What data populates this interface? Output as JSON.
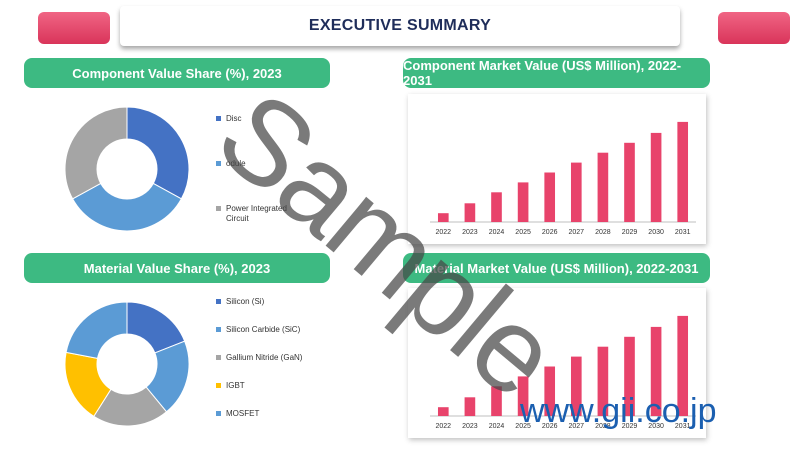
{
  "header": {
    "title": "EXECUTIVE SUMMARY"
  },
  "colors": {
    "accent_pink": "#e8436b",
    "panel_green": "#3dba82",
    "title_navy": "#1f2d5a"
  },
  "panels": {
    "component_share_title": "Component Value Share (%), 2023",
    "component_value_title": "Component Market Value (US$ Million), 2022-2031",
    "material_share_title": "Material Value Share (%), 2023",
    "material_value_title": "Material Market Value (US$ Million), 2022-2031"
  },
  "watermark": {
    "text": "Sample",
    "url": "www.gii.co.jp"
  },
  "chart_data": [
    {
      "type": "pie",
      "title": "Component Value Share (%), 2023",
      "labels": [
        "Discrete",
        "Module",
        "Power Integrated Circuit"
      ],
      "legend_labels": [
        "Disc",
        "odule",
        "Power Integrated Circuit"
      ],
      "values": [
        33,
        34,
        33
      ],
      "colors": [
        "#4472c4",
        "#5b9bd5",
        "#a5a5a5"
      ]
    },
    {
      "type": "bar",
      "title": "Component Market Value (US$ Million), 2022-2031",
      "categories": [
        "2022",
        "2023",
        "2024",
        "2025",
        "2026",
        "2027",
        "2028",
        "2029",
        "2030",
        "2031"
      ],
      "values": [
        8,
        17,
        27,
        36,
        45,
        54,
        63,
        72,
        81,
        91
      ],
      "ylim": [
        0,
        100
      ],
      "color": "#e8436b"
    },
    {
      "type": "pie",
      "title": "Material Value Share (%), 2023",
      "labels": [
        "Silicon (Si)",
        "Silicon Carbide (SiC)",
        "Gallium Nitride (GaN)",
        "IGBT",
        "MOSFET"
      ],
      "values": [
        19,
        20,
        20,
        19,
        22
      ],
      "colors": [
        "#4472c4",
        "#5b9bd5",
        "#a5a5a5",
        "#ffc000",
        "#5b9bd5"
      ]
    },
    {
      "type": "bar",
      "title": "Material Market Value (US$ Million), 2022-2031",
      "categories": [
        "2022",
        "2023",
        "2024",
        "2025",
        "2026",
        "2027",
        "2028",
        "2029",
        "2030",
        "2031"
      ],
      "values": [
        8,
        17,
        27,
        36,
        45,
        54,
        63,
        72,
        81,
        91
      ],
      "ylim": [
        0,
        100
      ],
      "color": "#e8436b"
    }
  ]
}
